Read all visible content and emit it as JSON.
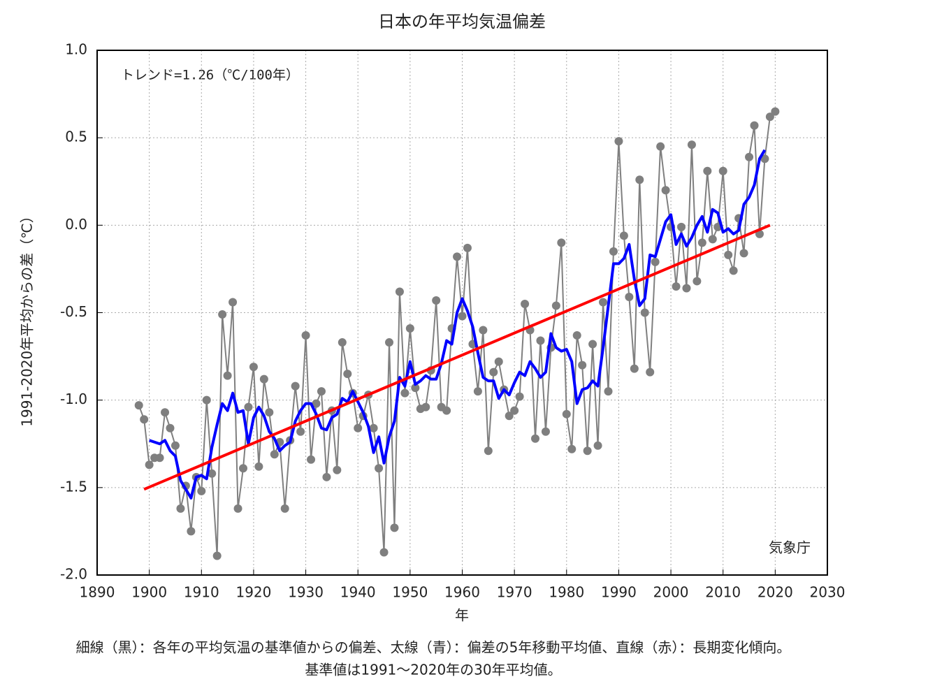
{
  "chart_data": {
    "type": "line",
    "title": "日本の年平均気温偏差",
    "annotation": "トレンド=1.26（℃/100年）",
    "credit": "気象庁",
    "xlabel": "年",
    "ylabel": "1991-2020年平均からの差（℃）",
    "caption": [
      "細線（黒）：各年の平均気温の基準値からの偏差、太線（青）：偏差の5年移動平均値、直線（赤）：長期変化傾向。",
      "基準値は1991～2020年の30年平均値。"
    ],
    "xlim": [
      1890,
      2030
    ],
    "xticks": [
      1890,
      1900,
      1910,
      1920,
      1930,
      1940,
      1950,
      1960,
      1970,
      1980,
      1990,
      2000,
      2010,
      2020,
      2030
    ],
    "ylim": [
      -2,
      1
    ],
    "yticks": [
      {
        "value": -2,
        "label": "-2.0"
      },
      {
        "value": -1.5,
        "label": "-1.5"
      },
      {
        "value": -1,
        "label": "-1.0"
      },
      {
        "value": -0.5,
        "label": "-0.5"
      },
      {
        "value": 0,
        "label": "0.0"
      },
      {
        "value": 0.5,
        "label": "0.5"
      },
      {
        "value": 1,
        "label": "1.0"
      }
    ],
    "grid": true,
    "x": [
      1898,
      1899,
      1900,
      1901,
      1902,
      1903,
      1904,
      1905,
      1906,
      1907,
      1908,
      1909,
      1910,
      1911,
      1912,
      1913,
      1914,
      1915,
      1916,
      1917,
      1918,
      1919,
      1920,
      1921,
      1922,
      1923,
      1924,
      1925,
      1926,
      1927,
      1928,
      1929,
      1930,
      1931,
      1932,
      1933,
      1934,
      1935,
      1936,
      1937,
      1938,
      1939,
      1940,
      1941,
      1942,
      1943,
      1944,
      1945,
      1946,
      1947,
      1948,
      1949,
      1950,
      1951,
      1952,
      1953,
      1954,
      1955,
      1956,
      1957,
      1958,
      1959,
      1960,
      1961,
      1962,
      1963,
      1964,
      1965,
      1966,
      1967,
      1968,
      1969,
      1970,
      1971,
      1972,
      1973,
      1974,
      1975,
      1976,
      1977,
      1978,
      1979,
      1980,
      1981,
      1982,
      1983,
      1984,
      1985,
      1986,
      1987,
      1988,
      1989,
      1990,
      1991,
      1992,
      1993,
      1994,
      1995,
      1996,
      1997,
      1998,
      1999,
      2000,
      2001,
      2002,
      2003,
      2004,
      2005,
      2006,
      2007,
      2008,
      2009,
      2010,
      2011,
      2012,
      2013,
      2014,
      2015,
      2016,
      2017,
      2018,
      2019,
      2020
    ],
    "series": [
      {
        "color": "#7f7f7f",
        "markers": true,
        "width": 2,
        "values": [
          -1.03,
          -1.11,
          -1.37,
          -1.33,
          -1.33,
          -1.07,
          -1.16,
          -1.26,
          -1.62,
          -1.49,
          -1.75,
          -1.44,
          -1.52,
          -1.0,
          -1.42,
          -1.89,
          -0.51,
          -0.86,
          -0.44,
          -1.62,
          -1.39,
          -1.04,
          -0.81,
          -1.38,
          -0.88,
          -1.07,
          -1.31,
          -1.24,
          -1.62,
          -1.23,
          -0.92,
          -1.18,
          -0.63,
          -1.34,
          -1.02,
          -0.95,
          -1.44,
          -1.06,
          -1.4,
          -0.67,
          -0.85,
          -0.96,
          -1.16,
          -1.09,
          -0.97,
          -1.16,
          -1.39,
          -1.87,
          -0.67,
          -1.73,
          -0.38,
          -0.96,
          -0.59,
          -0.93,
          -1.05,
          -1.04,
          -0.83,
          -0.43,
          -1.04,
          -1.06,
          -0.59,
          -0.18,
          -0.52,
          -0.13,
          -0.68,
          -0.95,
          -0.6,
          -1.29,
          -0.84,
          -0.78,
          -0.94,
          -1.09,
          -1.06,
          -0.98,
          -0.45,
          -0.6,
          -1.22,
          -0.66,
          -1.18,
          -0.7,
          -0.46,
          -0.1,
          -1.08,
          -1.28,
          -0.63,
          -0.8,
          -1.29,
          -0.68,
          -1.26,
          -0.44,
          -0.95,
          -0.15,
          0.48,
          -0.06,
          -0.41,
          -0.82,
          0.26,
          -0.5,
          -0.84,
          -0.21,
          0.45,
          0.2,
          -0.01,
          -0.35,
          -0.01,
          -0.36,
          0.46,
          -0.32,
          -0.1,
          0.31,
          -0.08,
          -0.01,
          0.31,
          -0.17,
          -0.26,
          0.04,
          -0.16,
          0.39,
          0.57,
          -0.05,
          0.38,
          0.62,
          0.65
        ]
      },
      {
        "color": "#0000ff",
        "markers": false,
        "width": 4,
        "values": [
          null,
          null,
          -1.23,
          -1.24,
          -1.25,
          -1.23,
          -1.29,
          -1.32,
          -1.46,
          -1.51,
          -1.56,
          -1.44,
          -1.43,
          -1.45,
          -1.27,
          -1.14,
          -1.02,
          -1.06,
          -0.96,
          -1.07,
          -1.06,
          -1.25,
          -1.1,
          -1.04,
          -1.09,
          -1.18,
          -1.22,
          -1.29,
          -1.26,
          -1.24,
          -1.12,
          -1.06,
          -1.02,
          -1.02,
          -1.08,
          -1.16,
          -1.17,
          -1.1,
          -1.08,
          -0.99,
          -1.01,
          -0.95,
          -1.01,
          -1.07,
          -1.15,
          -1.3,
          -1.21,
          -1.36,
          -1.21,
          -1.12,
          -0.87,
          -0.92,
          -0.78,
          -0.91,
          -0.89,
          -0.86,
          -0.88,
          -0.88,
          -0.79,
          -0.66,
          -0.68,
          -0.5,
          -0.42,
          -0.49,
          -0.58,
          -0.73,
          -0.87,
          -0.89,
          -0.89,
          -0.99,
          -0.94,
          -0.97,
          -0.9,
          -0.84,
          -0.86,
          -0.78,
          -0.82,
          -0.87,
          -0.84,
          -0.62,
          -0.7,
          -0.72,
          -0.71,
          -0.78,
          -1.02,
          -0.94,
          -0.93,
          -0.89,
          -0.92,
          -0.7,
          -0.46,
          -0.22,
          -0.22,
          -0.19,
          -0.11,
          -0.31,
          -0.46,
          -0.42,
          -0.17,
          -0.18,
          -0.08,
          0.02,
          0.06,
          -0.11,
          -0.05,
          -0.12,
          -0.07,
          0.0,
          0.05,
          -0.04,
          0.09,
          0.07,
          -0.04,
          -0.02,
          -0.05,
          -0.03,
          0.12,
          0.16,
          0.23,
          0.38,
          0.43,
          null,
          null
        ]
      },
      {
        "color": "#ff0000",
        "markers": false,
        "width": 4,
        "x": [
          1899,
          2019
        ],
        "values": [
          -1.51,
          0.0
        ]
      }
    ]
  }
}
